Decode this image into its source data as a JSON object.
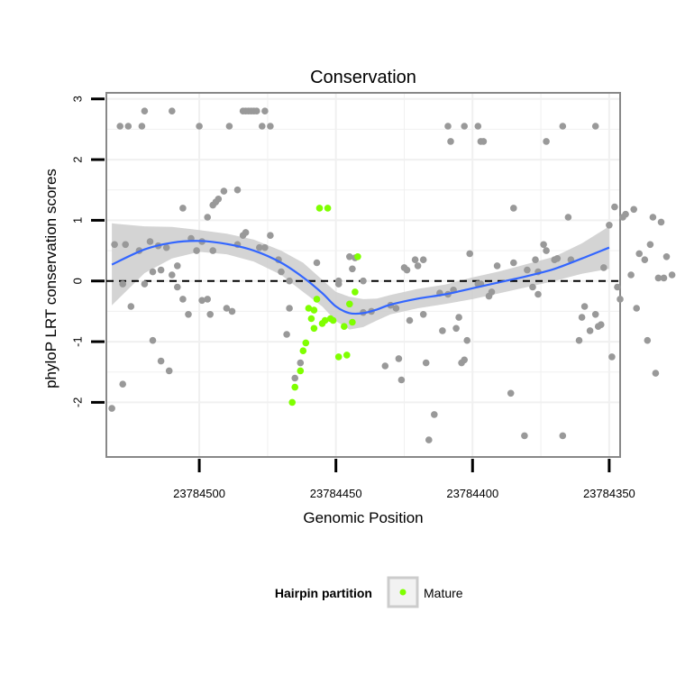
{
  "chart_data": {
    "type": "scatter",
    "title": "Conservation",
    "xlabel": "Genomic Position",
    "ylabel": "phyloP LRT conservation scores",
    "xlim": [
      23784534,
      23784346
    ],
    "x_reversed": true,
    "ylim": [
      -2.9,
      3.1
    ],
    "x_ticks": [
      23784500,
      23784450,
      23784400,
      23784350
    ],
    "x_tick_labels": [
      "23784500",
      "23784450",
      "23784400",
      "23784350"
    ],
    "y_ticks": [
      -2,
      -1,
      0,
      1,
      2,
      3
    ],
    "y_tick_labels": [
      "-2",
      "-1",
      "0",
      "1",
      "2",
      "3"
    ],
    "grid": true,
    "reference_line": {
      "y": 0,
      "style": "dashed"
    },
    "legend": {
      "title": "Hairpin partition",
      "position": "bottom",
      "entries": [
        {
          "label": "Mature",
          "color": "#7fff00"
        }
      ]
    },
    "colors": {
      "background": "#ffffff",
      "other": "#999999",
      "mature": "#7fff00",
      "smooth": "#3366ff",
      "ribbon": "#cccccc",
      "grid": "#f0f0f0",
      "border": "#888888"
    },
    "series": [
      {
        "name": "",
        "color": "#999999",
        "points": [
          [
            23784529,
            2.55
          ],
          [
            23784526,
            2.55
          ],
          [
            23784521,
            2.55
          ],
          [
            23784520,
            2.8
          ],
          [
            23784510,
            2.8
          ],
          [
            23784500,
            2.55
          ],
          [
            23784489,
            2.55
          ],
          [
            23784484,
            2.8
          ],
          [
            23784483,
            2.8
          ],
          [
            23784482,
            2.8
          ],
          [
            23784481,
            2.8
          ],
          [
            23784480,
            2.8
          ],
          [
            23784479,
            2.8
          ],
          [
            23784477,
            2.55
          ],
          [
            23784476,
            2.8
          ],
          [
            23784474,
            2.55
          ],
          [
            23784409,
            2.55
          ],
          [
            23784408,
            2.3
          ],
          [
            23784403,
            2.55
          ],
          [
            23784398,
            2.55
          ],
          [
            23784397,
            2.3
          ],
          [
            23784396,
            2.3
          ],
          [
            23784373,
            2.3
          ],
          [
            23784367,
            2.55
          ],
          [
            23784355,
            2.55
          ],
          [
            23784486,
            1.5
          ],
          [
            23784491,
            1.48
          ],
          [
            23784493,
            1.35
          ],
          [
            23784494,
            1.3
          ],
          [
            23784495,
            1.25
          ],
          [
            23784506,
            1.2
          ],
          [
            23784497,
            1.05
          ],
          [
            23784499,
            0.65
          ],
          [
            23784503,
            0.7
          ],
          [
            23784527,
            0.6
          ],
          [
            23784518,
            0.65
          ],
          [
            23784512,
            0.55
          ],
          [
            23784515,
            0.58
          ],
          [
            23784522,
            0.5
          ],
          [
            23784517,
            0.15
          ],
          [
            23784514,
            0.18
          ],
          [
            23784510,
            0.1
          ],
          [
            23784508,
            0.25
          ],
          [
            23784520,
            -0.05
          ],
          [
            23784508,
            -0.1
          ],
          [
            23784506,
            -0.3
          ],
          [
            23784504,
            -0.55
          ],
          [
            23784496,
            -0.55
          ],
          [
            23784488,
            -0.5
          ],
          [
            23784490,
            -0.45
          ],
          [
            23784497,
            -0.3
          ],
          [
            23784499,
            -0.32
          ],
          [
            23784501,
            0.5
          ],
          [
            23784495,
            0.5
          ],
          [
            23784483,
            0.8
          ],
          [
            23784484,
            0.75
          ],
          [
            23784486,
            0.6
          ],
          [
            23784478,
            0.55
          ],
          [
            23784476,
            0.55
          ],
          [
            23784474,
            0.75
          ],
          [
            23784471,
            0.35
          ],
          [
            23784470,
            0.15
          ],
          [
            23784467,
            0.0
          ],
          [
            23784525,
            -0.42
          ],
          [
            23784528,
            -0.05
          ],
          [
            23784531,
            0.6
          ],
          [
            23784532,
            -2.1
          ],
          [
            23784528,
            -1.7
          ],
          [
            23784517,
            -0.98
          ],
          [
            23784514,
            -1.32
          ],
          [
            23784511,
            -1.48
          ],
          [
            23784468,
            -0.88
          ],
          [
            23784467,
            -0.45
          ],
          [
            23784465,
            -1.6
          ],
          [
            23784463,
            -1.35
          ],
          [
            23784457,
            0.3
          ],
          [
            23784449,
            -0.05
          ],
          [
            23784449,
            0.0
          ],
          [
            23784445,
            0.4
          ],
          [
            23784444,
            0.2
          ],
          [
            23784443,
            0.38
          ],
          [
            23784440,
            0.0
          ],
          [
            23784440,
            -0.52
          ],
          [
            23784437,
            -0.5
          ],
          [
            23784432,
            -1.4
          ],
          [
            23784430,
            -0.4
          ],
          [
            23784428,
            -0.45
          ],
          [
            23784427,
            -1.28
          ],
          [
            23784426,
            -1.63
          ],
          [
            23784425,
            0.22
          ],
          [
            23784424,
            0.18
          ],
          [
            23784423,
            -0.65
          ],
          [
            23784421,
            0.35
          ],
          [
            23784420,
            0.25
          ],
          [
            23784418,
            0.35
          ],
          [
            23784418,
            -0.55
          ],
          [
            23784417,
            -1.35
          ],
          [
            23784416,
            -2.62
          ],
          [
            23784414,
            -2.2
          ],
          [
            23784412,
            -0.2
          ],
          [
            23784411,
            -0.82
          ],
          [
            23784409,
            -0.22
          ],
          [
            23784407,
            -0.15
          ],
          [
            23784406,
            -0.78
          ],
          [
            23784405,
            -0.6
          ],
          [
            23784404,
            -1.35
          ],
          [
            23784403,
            -1.3
          ],
          [
            23784402,
            -0.98
          ],
          [
            23784401,
            0.45
          ],
          [
            23784398,
            -0.05
          ],
          [
            23784397,
            -0.05
          ],
          [
            23784394,
            -0.25
          ],
          [
            23784393,
            -0.18
          ],
          [
            23784391,
            0.25
          ],
          [
            23784386,
            -1.85
          ],
          [
            23784385,
            0.3
          ],
          [
            23784385,
            1.2
          ],
          [
            23784381,
            -2.55
          ],
          [
            23784380,
            0.18
          ],
          [
            23784378,
            -0.1
          ],
          [
            23784377,
            0.35
          ],
          [
            23784376,
            0.15
          ],
          [
            23784376,
            -0.22
          ],
          [
            23784374,
            0.6
          ],
          [
            23784373,
            0.5
          ],
          [
            23784370,
            0.35
          ],
          [
            23784369,
            0.37
          ],
          [
            23784367,
            -2.55
          ],
          [
            23784365,
            1.05
          ],
          [
            23784364,
            0.35
          ],
          [
            23784361,
            -0.98
          ],
          [
            23784360,
            -0.6
          ],
          [
            23784359,
            -0.42
          ],
          [
            23784357,
            -0.82
          ],
          [
            23784355,
            -0.55
          ],
          [
            23784354,
            -0.75
          ],
          [
            23784353,
            -0.72
          ],
          [
            23784352,
            0.22
          ],
          [
            23784350,
            0.92
          ],
          [
            23784349,
            -1.25
          ],
          [
            23784348,
            1.22
          ],
          [
            23784347,
            -0.1
          ],
          [
            23784346,
            -0.3
          ],
          [
            23784345,
            1.05
          ],
          [
            23784344,
            1.1
          ],
          [
            23784342,
            0.1
          ],
          [
            23784341,
            1.18
          ],
          [
            23784340,
            -0.45
          ],
          [
            23784339,
            0.45
          ],
          [
            23784337,
            0.35
          ],
          [
            23784336,
            -0.98
          ],
          [
            23784335,
            0.6
          ],
          [
            23784334,
            1.05
          ],
          [
            23784333,
            -1.52
          ],
          [
            23784332,
            0.05
          ],
          [
            23784331,
            0.97
          ],
          [
            23784330,
            0.05
          ],
          [
            23784329,
            0.4
          ],
          [
            23784327,
            0.1
          ]
        ]
      },
      {
        "name": "Mature",
        "color": "#7fff00",
        "points": [
          [
            23784466,
            -2.0
          ],
          [
            23784465,
            -1.75
          ],
          [
            23784463,
            -1.48
          ],
          [
            23784462,
            -1.15
          ],
          [
            23784461,
            -1.02
          ],
          [
            23784460,
            -0.45
          ],
          [
            23784459,
            -0.62
          ],
          [
            23784458,
            -0.78
          ],
          [
            23784458,
            -0.48
          ],
          [
            23784457,
            -0.3
          ],
          [
            23784456,
            1.2
          ],
          [
            23784455,
            -0.7
          ],
          [
            23784454,
            -0.65
          ],
          [
            23784453,
            1.2
          ],
          [
            23784452,
            -0.62
          ],
          [
            23784451,
            -0.65
          ],
          [
            23784449,
            -1.25
          ],
          [
            23784447,
            -0.75
          ],
          [
            23784446,
            -1.22
          ],
          [
            23784445,
            -0.38
          ],
          [
            23784444,
            -0.68
          ],
          [
            23784443,
            -0.18
          ],
          [
            23784442,
            0.4
          ]
        ]
      }
    ],
    "smooth": {
      "name": "loess fit",
      "color": "#3366ff",
      "x": [
        23784532,
        23784520,
        23784510,
        23784500,
        23784490,
        23784480,
        23784470,
        23784462,
        23784455,
        23784450,
        23784445,
        23784440,
        23784435,
        23784430,
        23784420,
        23784410,
        23784400,
        23784390,
        23784380,
        23784370,
        23784360,
        23784350
      ],
      "y": [
        0.27,
        0.52,
        0.63,
        0.66,
        0.61,
        0.5,
        0.3,
        0.06,
        -0.2,
        -0.42,
        -0.53,
        -0.53,
        -0.47,
        -0.39,
        -0.29,
        -0.22,
        -0.12,
        -0.02,
        0.08,
        0.2,
        0.37,
        0.55
      ],
      "ci_low": [
        -0.4,
        0.13,
        0.37,
        0.48,
        0.44,
        0.32,
        0.1,
        -0.18,
        -0.42,
        -0.66,
        -0.8,
        -0.76,
        -0.65,
        -0.55,
        -0.45,
        -0.38,
        -0.3,
        -0.2,
        -0.1,
        0.0,
        0.12,
        0.2
      ],
      "ci_high": [
        0.95,
        0.9,
        0.89,
        0.84,
        0.78,
        0.68,
        0.5,
        0.3,
        0.02,
        -0.18,
        -0.26,
        -0.3,
        -0.29,
        -0.23,
        -0.13,
        -0.06,
        0.06,
        0.16,
        0.28,
        0.4,
        0.62,
        0.9
      ]
    }
  }
}
